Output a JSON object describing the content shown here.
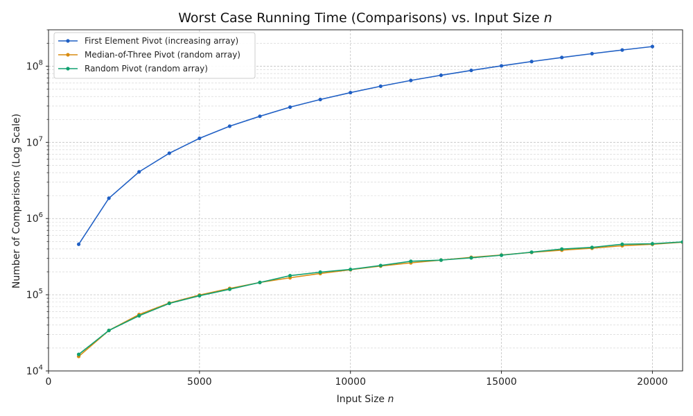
{
  "chart_data": {
    "type": "line",
    "title": "Worst Case Running Time (Comparisons) vs. Input Size ",
    "title_var": "n",
    "xlabel": "Input Size ",
    "xlabel_var": "n",
    "ylabel": "Number of Comparisons (Log Scale)",
    "xlim": [
      0,
      21000
    ],
    "ylim": [
      10000,
      300000000
    ],
    "yscale": "log",
    "grid": true,
    "legend_position": "top-left",
    "x_ticks": [
      0,
      5000,
      10000,
      15000,
      20000
    ],
    "x_tick_labels": [
      "0",
      "5000",
      "10000",
      "15000",
      "20000"
    ],
    "y_ticks": [
      10000,
      100000,
      1000000,
      10000000,
      100000000
    ],
    "y_tick_bases": [
      "10",
      "10",
      "10",
      "10",
      "10"
    ],
    "y_tick_exps": [
      "4",
      "5",
      "6",
      "7",
      "8"
    ],
    "x": [
      1000,
      2000,
      3000,
      4000,
      5000,
      6000,
      7000,
      8000,
      9000,
      10000,
      11000,
      12000,
      13000,
      14000,
      15000,
      16000,
      17000,
      18000,
      19000,
      20000,
      21000
    ],
    "series": [
      {
        "name": "First Element Pivot (increasing array)",
        "color": "#1f5fc4",
        "values": [
          460000,
          1850000,
          4100000,
          7200000,
          11300000,
          16300000,
          22000000,
          29000000,
          36500000,
          45000000,
          54500000,
          65000000,
          76000000,
          88000000,
          101000000,
          115000000,
          130000000,
          146000000,
          163000000,
          181000000,
          null
        ]
      },
      {
        "name": "Median-of-Three Pivot (random array)",
        "color": "#d98c10",
        "values": [
          15500,
          34000,
          55000,
          78000,
          99000,
          121000,
          145000,
          167000,
          190000,
          213000,
          238000,
          262000,
          285000,
          310000,
          332000,
          360000,
          385000,
          408000,
          440000,
          460000,
          490000
        ]
      },
      {
        "name": "Random Pivot (random array)",
        "color": "#10a070",
        "values": [
          16500,
          34000,
          53000,
          77000,
          97000,
          118000,
          145000,
          178000,
          198000,
          215000,
          242000,
          275000,
          285000,
          305000,
          330000,
          362000,
          398000,
          418000,
          460000,
          467000,
          493000
        ]
      }
    ]
  }
}
